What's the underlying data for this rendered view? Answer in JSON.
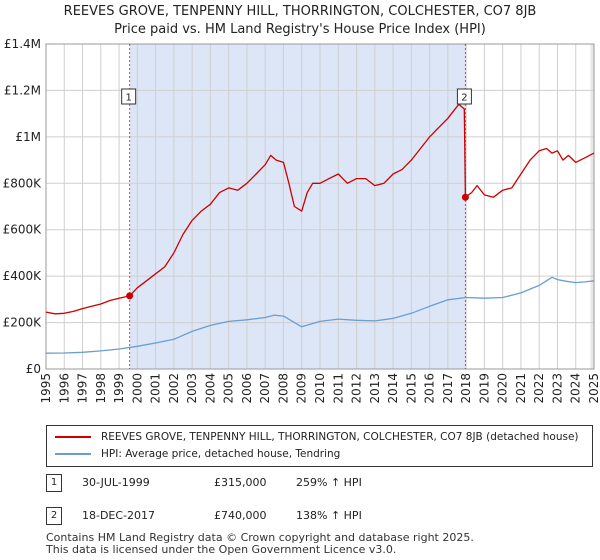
{
  "title_line1": "REEVES GROVE, TENPENNY HILL, THORRINGTON, COLCHESTER, CO7 8JB",
  "title_line2": "Price paid vs. HM Land Registry's House Price Index (HPI)",
  "colors": {
    "property": "#cc0000",
    "hpi": "#6a9ecf",
    "shade": "#dde6f7",
    "grid": "#cfcfcf"
  },
  "chart_data": {
    "type": "line",
    "title": "REEVES GROVE, TENPENNY HILL, THORRINGTON, COLCHESTER, CO7 8JB — Price paid vs. HM Land Registry's House Price Index (HPI)",
    "xlabel": "",
    "ylabel": "",
    "xlim": [
      1995,
      2025
    ],
    "ylim": [
      0,
      1400000
    ],
    "y_ticks": [
      {
        "value": 0,
        "label": "£0"
      },
      {
        "value": 200000,
        "label": "£200K"
      },
      {
        "value": 400000,
        "label": "£400K"
      },
      {
        "value": 600000,
        "label": "£600K"
      },
      {
        "value": 800000,
        "label": "£800K"
      },
      {
        "value": 1000000,
        "label": "£1M"
      },
      {
        "value": 1200000,
        "label": "£1.2M"
      },
      {
        "value": 1400000,
        "label": "£1.4M"
      }
    ],
    "x_ticks": [
      "1995",
      "1996",
      "1997",
      "1998",
      "1999",
      "2000",
      "2001",
      "2002",
      "2003",
      "2004",
      "2005",
      "2006",
      "2007",
      "2008",
      "2009",
      "2010",
      "2011",
      "2012",
      "2013",
      "2014",
      "2015",
      "2016",
      "2017",
      "2018",
      "2019",
      "2020",
      "2021",
      "2022",
      "2023",
      "2024",
      "2025"
    ],
    "shaded_range": [
      1999.58,
      2017.96
    ],
    "series": [
      {
        "name": "REEVES GROVE, TENPENNY HILL, THORRINGTON, COLCHESTER, CO7 8JB (detached house)",
        "color": "#cc0000",
        "x": [
          1995,
          1995.5,
          1996,
          1996.5,
          1997,
          1997.5,
          1998,
          1998.5,
          1999,
          1999.58,
          2000,
          2000.5,
          2001,
          2001.5,
          2002,
          2002.5,
          2003,
          2003.5,
          2004,
          2004.5,
          2005,
          2005.5,
          2006,
          2006.5,
          2007,
          2007.3,
          2007.6,
          2008,
          2008.3,
          2008.6,
          2009,
          2009.3,
          2009.6,
          2010,
          2010.5,
          2011,
          2011.5,
          2012,
          2012.5,
          2013,
          2013.5,
          2014,
          2014.5,
          2015,
          2015.5,
          2016,
          2016.5,
          2017,
          2017.3,
          2017.6,
          2017.9,
          2017.96,
          2018.3,
          2018.6,
          2019,
          2019.5,
          2020,
          2020.5,
          2021,
          2021.5,
          2022,
          2022.4,
          2022.7,
          2023,
          2023.3,
          2023.6,
          2024,
          2024.5,
          2025
        ],
        "y": [
          245000,
          238000,
          240000,
          248000,
          260000,
          270000,
          280000,
          295000,
          305000,
          315000,
          350000,
          380000,
          410000,
          440000,
          500000,
          580000,
          640000,
          680000,
          710000,
          760000,
          780000,
          770000,
          800000,
          840000,
          880000,
          920000,
          900000,
          890000,
          800000,
          700000,
          680000,
          760000,
          800000,
          800000,
          820000,
          840000,
          800000,
          820000,
          820000,
          790000,
          800000,
          840000,
          860000,
          900000,
          950000,
          1000000,
          1040000,
          1080000,
          1110000,
          1140000,
          1120000,
          740000,
          760000,
          790000,
          750000,
          740000,
          770000,
          780000,
          840000,
          900000,
          940000,
          950000,
          930000,
          940000,
          900000,
          920000,
          890000,
          910000,
          930000
        ]
      },
      {
        "name": "HPI: Average price, detached house, Tendring",
        "color": "#6a9ecf",
        "x": [
          1995,
          1996,
          1997,
          1998,
          1999,
          2000,
          2001,
          2002,
          2003,
          2004,
          2005,
          2006,
          2007,
          2007.5,
          2008,
          2008.5,
          2009,
          2010,
          2011,
          2012,
          2013,
          2014,
          2015,
          2016,
          2017,
          2018,
          2019,
          2020,
          2021,
          2022,
          2022.7,
          2023,
          2023.5,
          2024,
          2024.5,
          2025
        ],
        "y": [
          68000,
          69000,
          72000,
          78000,
          86000,
          98000,
          112000,
          128000,
          162000,
          188000,
          205000,
          212000,
          222000,
          232000,
          228000,
          205000,
          182000,
          205000,
          215000,
          210000,
          207000,
          218000,
          240000,
          270000,
          298000,
          308000,
          305000,
          308000,
          328000,
          360000,
          395000,
          385000,
          378000,
          372000,
          375000,
          380000
        ]
      }
    ],
    "annotations": [
      {
        "label": "1",
        "x": 1999.58,
        "y": 315000
      },
      {
        "label": "2",
        "x": 2017.96,
        "y": 740000
      }
    ]
  },
  "legend": {
    "property_label": "REEVES GROVE, TENPENNY HILL, THORRINGTON, COLCHESTER, CO7 8JB (detached house)",
    "hpi_label": "HPI: Average price, detached house, Tendring"
  },
  "sales": [
    {
      "num": "1",
      "date": "30-JUL-1999",
      "price": "£315,000",
      "hpi_change": "259% ↑ HPI"
    },
    {
      "num": "2",
      "date": "18-DEC-2017",
      "price": "£740,000",
      "hpi_change": "138% ↑ HPI"
    }
  ],
  "footer": {
    "line1": "Contains HM Land Registry data © Crown copyright and database right 2025.",
    "line2": "This data is licensed under the Open Government Licence v3.0."
  }
}
